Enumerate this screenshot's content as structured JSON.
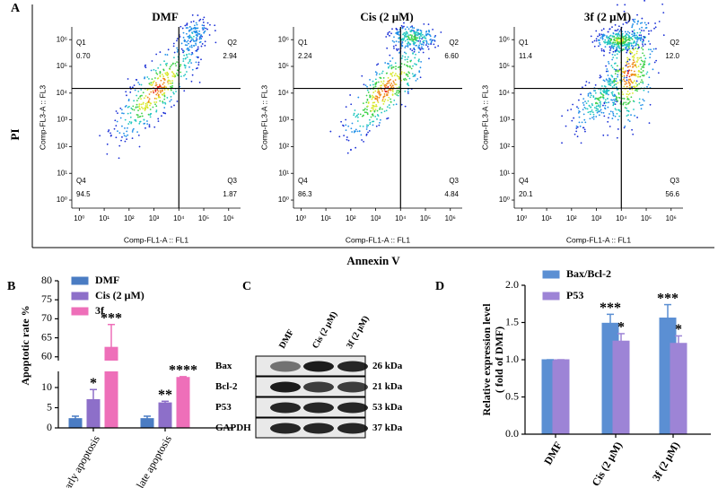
{
  "panel_labels": [
    "A",
    "B",
    "C",
    "D"
  ],
  "chart_data": [
    {
      "type": "flow",
      "xlabel": "Annexin V",
      "ylabel": "PI",
      "log_scale": true,
      "plot_xlabel": "Comp-FL1-A :: FL1",
      "plot_ylabel": "Comp-FL3-A :: FL3",
      "xlim": [
        0.5,
        3000000
      ],
      "ylim": [
        0.5,
        3000000
      ],
      "xticks": [
        {
          "value": 1,
          "label": "10⁰"
        },
        {
          "value": 10,
          "label": "10¹"
        },
        {
          "value": 100,
          "label": "10²"
        },
        {
          "value": 1000,
          "label": "10³"
        },
        {
          "value": 10000,
          "label": "10⁴"
        },
        {
          "value": 100000,
          "label": "10⁵"
        },
        {
          "value": 1000000,
          "label": "10⁶"
        }
      ],
      "yticks": [
        {
          "value": 1,
          "label": "10⁰"
        },
        {
          "value": 10,
          "label": "10¹"
        },
        {
          "value": 100,
          "label": "10²"
        },
        {
          "value": 1000,
          "label": "10³"
        },
        {
          "value": 10000,
          "label": "10⁴"
        },
        {
          "value": 100000,
          "label": "10⁵"
        },
        {
          "value": 1000000,
          "label": "10⁶"
        }
      ],
      "gate": {
        "x": 10000,
        "y": 15000
      },
      "categories": [
        "Q1",
        "Q2",
        "Q3",
        "Q4"
      ],
      "plots": [
        {
          "title": "DMF",
          "values": [
            0.7,
            2.94,
            1.87,
            94.5
          ],
          "value_labels": [
            "0.70",
            "2.94",
            "1.87",
            "94.5"
          ]
        },
        {
          "title": "Cis (2 μM)",
          "values": [
            2.24,
            6.6,
            4.84,
            86.3
          ],
          "value_labels": [
            "2.24",
            "6.60",
            "4.84",
            "86.3"
          ]
        },
        {
          "title": "3f (2 μM)",
          "values": [
            11.4,
            12.0,
            56.6,
            20.1
          ],
          "value_labels": [
            "11.4",
            "12.0",
            "56.6",
            "20.1"
          ]
        }
      ]
    },
    {
      "type": "bar",
      "ylabel": "Apoptotic rate %",
      "categories": [
        "early apoptosis",
        "late apoptosis"
      ],
      "ylim": [
        0,
        80
      ],
      "ybreak": [
        14,
        59
      ],
      "yticks": [
        0,
        5,
        10,
        60,
        65,
        70,
        75,
        80
      ],
      "legend": "top-left",
      "series": [
        {
          "name": "DMF",
          "color": "#4a7cc3",
          "values": [
            2.3,
            2.3
          ],
          "errors": [
            0.6,
            0.6
          ]
        },
        {
          "name": "Cis (2 μM)",
          "color": "#8d6fc9",
          "values": [
            7,
            6.2
          ],
          "errors": [
            2.5,
            0.4
          ],
          "significance": [
            "*",
            "**"
          ]
        },
        {
          "name": "3f",
          "color": "#ee6fb9",
          "values": [
            62.5,
            12.5
          ],
          "errors": [
            6,
            0.2
          ],
          "significance": [
            "***",
            "****"
          ]
        }
      ]
    },
    {
      "type": "bar",
      "ylabel": [
        "Relative expression level",
        "( fold of DMF)"
      ],
      "categories": [
        "DMF",
        "Cis (2 μM)",
        "3f (2 μM)"
      ],
      "ylim": [
        0,
        2
      ],
      "yticks": [
        {
          "value": 0,
          "label": "0.0"
        },
        0.5,
        {
          "value": 1,
          "label": "1.0"
        },
        1.5,
        {
          "value": 2,
          "label": "2.0"
        }
      ],
      "legend": "top-left",
      "series": [
        {
          "name": "Bax/Bcl-2",
          "color": "#5b8fd3",
          "values": [
            1.0,
            1.49,
            1.56
          ],
          "errors": [
            0,
            0.12,
            0.18
          ],
          "significance": [
            null,
            "***",
            "***"
          ]
        },
        {
          "name": "P53",
          "color": "#9d84d6",
          "values": [
            1.0,
            1.25,
            1.22
          ],
          "errors": [
            0,
            0.1,
            0.1
          ],
          "significance": [
            null,
            "*",
            "*"
          ]
        }
      ]
    }
  ],
  "western_blot": {
    "lanes": [
      "DMF",
      "Cis (2 μM)",
      "3f (2 μM)"
    ],
    "bands": [
      {
        "protein": "Bax",
        "kda": "26 kDa"
      },
      {
        "protein": "Bcl-2",
        "kda": "21 kDa"
      },
      {
        "protein": "P53",
        "kda": "53 kDa"
      },
      {
        "protein": "GAPDH",
        "kda": "37 kDa"
      }
    ]
  }
}
